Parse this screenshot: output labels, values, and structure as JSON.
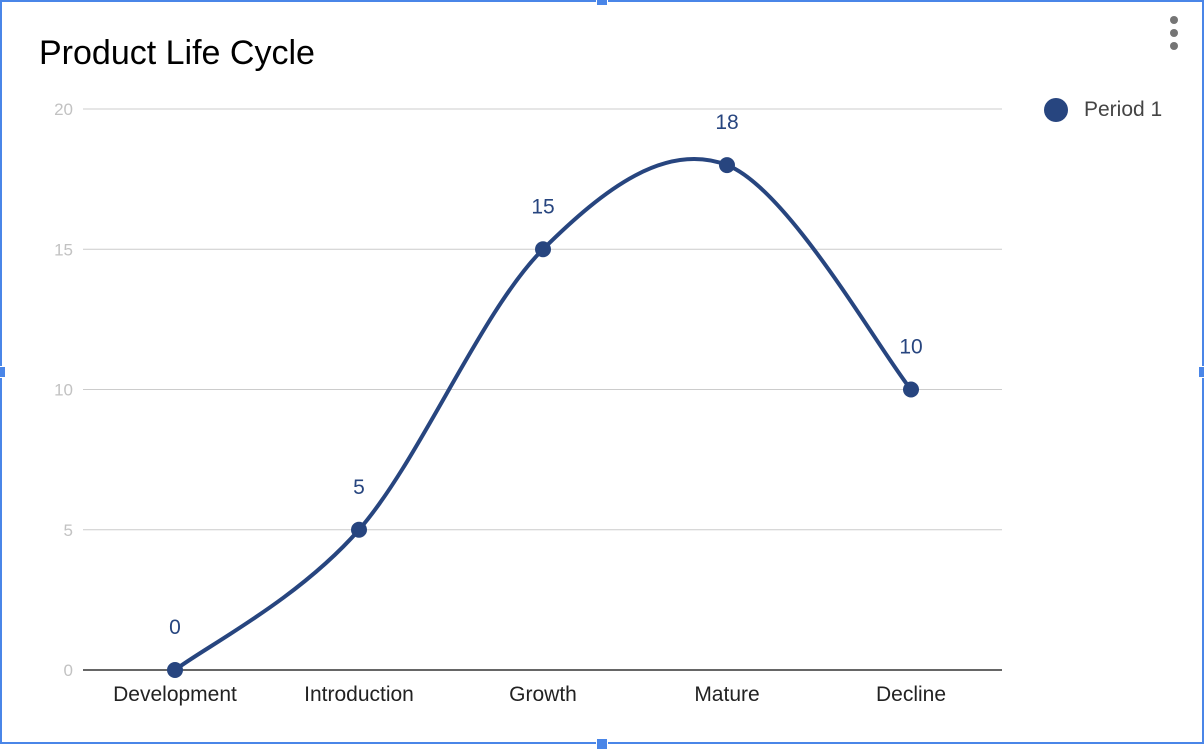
{
  "chart_data": {
    "type": "line",
    "title": "Product Life Cycle",
    "categories": [
      "Development",
      "Introduction",
      "Growth",
      "Mature",
      "Decline"
    ],
    "series": [
      {
        "name": "Period 1",
        "values": [
          0,
          5,
          15,
          18,
          10
        ],
        "color": "#27457f"
      }
    ],
    "smooth": true,
    "data_labels": true,
    "ylim": [
      0,
      20
    ],
    "yticks": [
      "0",
      "5",
      "10",
      "15",
      "20"
    ],
    "xlabel": "",
    "ylabel": "",
    "grid": true,
    "legend_position": "right"
  },
  "colors": {
    "selection_border": "#4a86e8",
    "gridline": "#cccccc",
    "baseline": "#333333"
  },
  "icons": {
    "menu": "more-vert-icon"
  }
}
